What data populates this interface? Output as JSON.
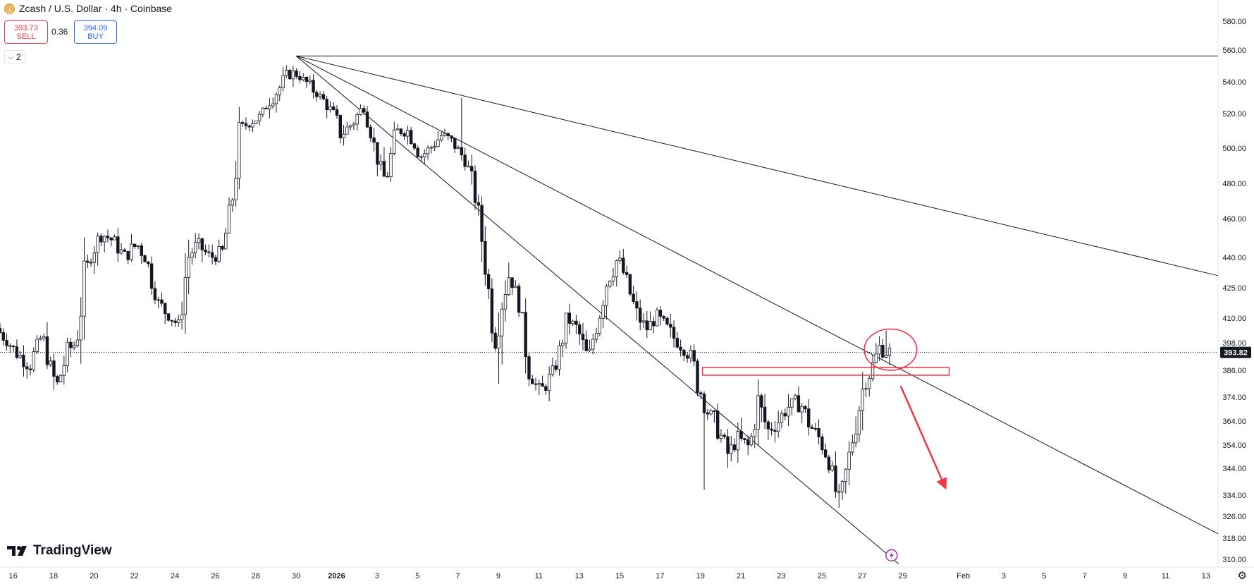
{
  "header": {
    "title": "Zcash / U.S. Dollar · 4h · Coinbase",
    "coin_icon": "zcash-coin-icon",
    "sell_price": "393.73",
    "sell_label": "SELL",
    "spread": "0.36",
    "buy_price": "394.09",
    "buy_label": "BUY",
    "indicators_count": "2"
  },
  "branding": {
    "logo_text": "TradingView"
  },
  "colors": {
    "candle": "#131722",
    "trendline": "#131722",
    "annotation": "#f23645",
    "price_label_bg": "#131722",
    "alert_icon": "#9c27b0"
  },
  "chart_data": {
    "type": "candlestick",
    "symbol": "Zcash / U.S. Dollar",
    "interval": "4h",
    "exchange": "Coinbase",
    "current_price": "393.82",
    "ylim": [
      308,
      583
    ],
    "y_ticks": [
      "580.00",
      "560.00",
      "540.00",
      "520.00",
      "500.00",
      "480.00",
      "460.00",
      "440.00",
      "425.00",
      "410.00",
      "398.00",
      "386.00",
      "374.00",
      "364.00",
      "354.00",
      "344.00",
      "334.00",
      "326.00",
      "318.00",
      "310.00"
    ],
    "x_ticks": [
      {
        "label": "16",
        "day": 16
      },
      {
        "label": "18",
        "day": 18
      },
      {
        "label": "20",
        "day": 20
      },
      {
        "label": "22",
        "day": 22
      },
      {
        "label": "24",
        "day": 24
      },
      {
        "label": "26",
        "day": 26
      },
      {
        "label": "28",
        "day": 28
      },
      {
        "label": "30",
        "day": 30
      },
      {
        "label": "2026",
        "day": 32
      },
      {
        "label": "3",
        "day": 34
      },
      {
        "label": "5",
        "day": 36
      },
      {
        "label": "7",
        "day": 38
      },
      {
        "label": "9",
        "day": 40
      },
      {
        "label": "11",
        "day": 42
      },
      {
        "label": "13",
        "day": 44
      },
      {
        "label": "15",
        "day": 46
      },
      {
        "label": "17",
        "day": 48
      },
      {
        "label": "19",
        "day": 50
      },
      {
        "label": "21",
        "day": 52
      },
      {
        "label": "23",
        "day": 54
      },
      {
        "label": "25",
        "day": 56
      },
      {
        "label": "27",
        "day": 58
      },
      {
        "label": "29",
        "day": 60
      },
      {
        "label": "Feb",
        "day": 63
      },
      {
        "label": "3",
        "day": 65
      },
      {
        "label": "5",
        "day": 67
      },
      {
        "label": "7",
        "day": 69
      },
      {
        "label": "9",
        "day": 71
      },
      {
        "label": "11",
        "day": 73
      },
      {
        "label": "13",
        "day": 75
      }
    ],
    "x_range_days": [
      15.35,
      75.6
    ],
    "anchors": [
      {
        "d": 15.35,
        "p": 405
      },
      {
        "d": 16.2,
        "p": 395
      },
      {
        "d": 17.0,
        "p": 388
      },
      {
        "d": 17.6,
        "p": 402
      },
      {
        "d": 18.3,
        "p": 378
      },
      {
        "d": 18.9,
        "p": 395
      },
      {
        "d": 19.3,
        "p": 398
      },
      {
        "d": 19.7,
        "p": 430
      },
      {
        "d": 20.1,
        "p": 445
      },
      {
        "d": 20.6,
        "p": 452
      },
      {
        "d": 21.2,
        "p": 448
      },
      {
        "d": 21.7,
        "p": 440
      },
      {
        "d": 22.3,
        "p": 447
      },
      {
        "d": 22.8,
        "p": 438
      },
      {
        "d": 23.3,
        "p": 418
      },
      {
        "d": 23.8,
        "p": 412
      },
      {
        "d": 24.4,
        "p": 406
      },
      {
        "d": 24.8,
        "p": 440
      },
      {
        "d": 25.3,
        "p": 447
      },
      {
        "d": 25.9,
        "p": 440
      },
      {
        "d": 26.5,
        "p": 442
      },
      {
        "d": 27.0,
        "p": 470
      },
      {
        "d": 27.4,
        "p": 510
      },
      {
        "d": 27.9,
        "p": 516
      },
      {
        "d": 28.4,
        "p": 518
      },
      {
        "d": 28.9,
        "p": 530
      },
      {
        "d": 29.3,
        "p": 535
      },
      {
        "d": 29.7,
        "p": 545
      },
      {
        "d": 30.2,
        "p": 545
      },
      {
        "d": 30.8,
        "p": 538
      },
      {
        "d": 31.4,
        "p": 530
      },
      {
        "d": 31.9,
        "p": 522
      },
      {
        "d": 32.4,
        "p": 508
      },
      {
        "d": 33.0,
        "p": 515
      },
      {
        "d": 33.5,
        "p": 525
      },
      {
        "d": 34.1,
        "p": 498
      },
      {
        "d": 34.6,
        "p": 480
      },
      {
        "d": 35.1,
        "p": 510
      },
      {
        "d": 35.7,
        "p": 510
      },
      {
        "d": 36.3,
        "p": 495
      },
      {
        "d": 36.8,
        "p": 500
      },
      {
        "d": 37.4,
        "p": 508
      },
      {
        "d": 38.0,
        "p": 502
      },
      {
        "d": 38.6,
        "p": 492
      },
      {
        "d": 39.1,
        "p": 470
      },
      {
        "d": 39.6,
        "p": 430
      },
      {
        "d": 40.0,
        "p": 398
      },
      {
        "d": 40.3,
        "p": 418
      },
      {
        "d": 40.7,
        "p": 432
      },
      {
        "d": 41.2,
        "p": 418
      },
      {
        "d": 41.7,
        "p": 385
      },
      {
        "d": 42.2,
        "p": 376
      },
      {
        "d": 42.6,
        "p": 380
      },
      {
        "d": 43.1,
        "p": 390
      },
      {
        "d": 43.6,
        "p": 410
      },
      {
        "d": 44.1,
        "p": 404
      },
      {
        "d": 44.6,
        "p": 390
      },
      {
        "d": 45.1,
        "p": 410
      },
      {
        "d": 45.5,
        "p": 428
      },
      {
        "d": 46.1,
        "p": 440
      },
      {
        "d": 46.5,
        "p": 428
      },
      {
        "d": 47.0,
        "p": 412
      },
      {
        "d": 47.5,
        "p": 405
      },
      {
        "d": 48.0,
        "p": 410
      },
      {
        "d": 48.5,
        "p": 404
      },
      {
        "d": 49.1,
        "p": 398
      },
      {
        "d": 49.7,
        "p": 392
      },
      {
        "d": 50.1,
        "p": 378
      },
      {
        "d": 50.5,
        "p": 368
      },
      {
        "d": 51.0,
        "p": 362
      },
      {
        "d": 51.5,
        "p": 350
      },
      {
        "d": 52.0,
        "p": 356
      },
      {
        "d": 52.6,
        "p": 353
      },
      {
        "d": 53.0,
        "p": 372
      },
      {
        "d": 53.5,
        "p": 360
      },
      {
        "d": 54.0,
        "p": 364
      },
      {
        "d": 54.5,
        "p": 370
      },
      {
        "d": 55.1,
        "p": 372
      },
      {
        "d": 55.6,
        "p": 362
      },
      {
        "d": 56.1,
        "p": 356
      },
      {
        "d": 56.6,
        "p": 345
      },
      {
        "d": 57.0,
        "p": 330
      },
      {
        "d": 57.4,
        "p": 344
      },
      {
        "d": 57.9,
        "p": 366
      },
      {
        "d": 58.3,
        "p": 382
      },
      {
        "d": 58.7,
        "p": 388
      },
      {
        "d": 59.0,
        "p": 396
      },
      {
        "d": 59.4,
        "p": 394
      }
    ],
    "special_wicks": [
      {
        "d": 50.2,
        "low": 336
      },
      {
        "d": 40.0,
        "low": 380
      },
      {
        "d": 38.2,
        "high": 530
      },
      {
        "d": 59.1,
        "high": 404
      }
    ],
    "horizontal_line": {
      "price": 556.3
    },
    "trendlines": [
      {
        "from": {
          "d": 30.0,
          "p": 556.3
        },
        "to": {
          "d": 75.6,
          "p": 431
        }
      },
      {
        "from": {
          "d": 30.0,
          "p": 556.3
        },
        "to": {
          "d": 75.6,
          "p": 319.6
        }
      },
      {
        "from": {
          "d": 30.0,
          "p": 556.3
        },
        "to": {
          "d": 59.8,
          "p": 308.3
        }
      }
    ],
    "annotations": {
      "zone": {
        "d1": 50.1,
        "d2": 62.3,
        "p_top": 387.2,
        "p_bottom": 383.8
      },
      "circle": {
        "d": 59.4,
        "p": 395,
        "rd": 1.3,
        "rp": 9
      },
      "arrow": {
        "from": {
          "d": 59.9,
          "p": 379
        },
        "to": {
          "d": 62.1,
          "p": 337
        }
      }
    },
    "alert_marker": {
      "d": 59.45,
      "p": 311.5
    }
  }
}
